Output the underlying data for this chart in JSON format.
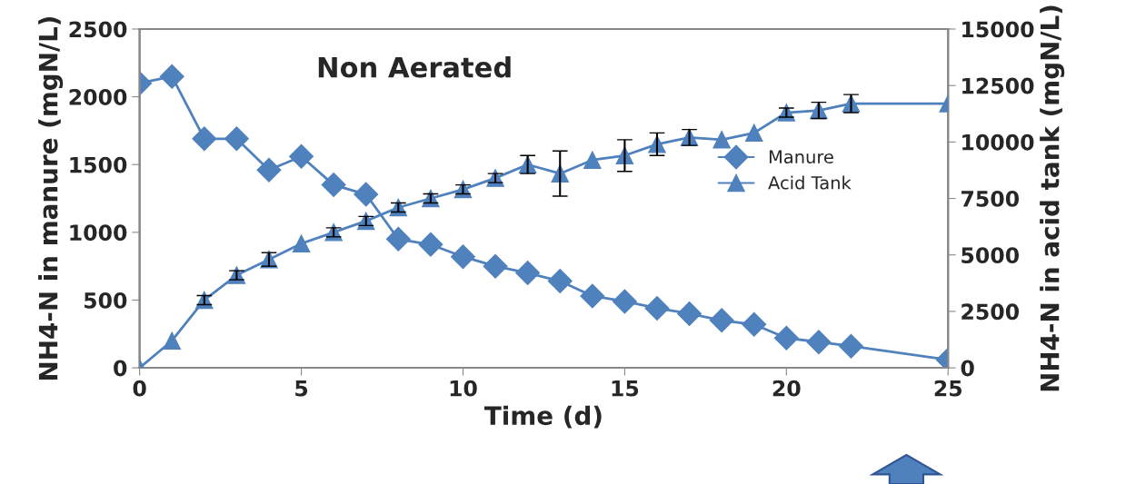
{
  "chart_data": {
    "type": "line",
    "title": "Non Aerated",
    "xlabel": "Time (d)",
    "ylabel": "NH4-N in manure (mgN/L)",
    "y2label": "NH4-N in acid tank (mgN/L)",
    "x": [
      0,
      1,
      2,
      3,
      4,
      5,
      6,
      7,
      8,
      9,
      10,
      11,
      12,
      13,
      14,
      15,
      16,
      17,
      18,
      19,
      20,
      21,
      22,
      25
    ],
    "series": [
      {
        "name": "Manure",
        "color": "#4f81bd",
        "marker": "diamond",
        "values": [
          2100,
          2150,
          1690,
          1690,
          1460,
          1560,
          1350,
          1280,
          950,
          910,
          820,
          750,
          700,
          640,
          530,
          490,
          440,
          400,
          350,
          320,
          220,
          190,
          160,
          60
        ]
      },
      {
        "name": "Acid Tank",
        "color": "#4f81bd",
        "marker": "triangle",
        "axis": "y2",
        "values": [
          0,
          1200,
          3000,
          4100,
          4800,
          5500,
          6000,
          6500,
          7100,
          7500,
          7900,
          8400,
          9000,
          8600,
          9200,
          9400,
          9900,
          10200,
          10100,
          10400,
          11300,
          11400,
          11700,
          11700
        ],
        "errors": [
          null,
          null,
          200,
          200,
          300,
          null,
          200,
          200,
          200,
          200,
          200,
          200,
          400,
          1000,
          null,
          700,
          500,
          350,
          null,
          null,
          200,
          360,
          400,
          null
        ]
      }
    ],
    "xlim": [
      0,
      25
    ],
    "xticks": [
      0,
      5,
      10,
      15,
      20,
      25
    ],
    "ylim": [
      0,
      2500
    ],
    "yticks": [
      0,
      500,
      1000,
      1500,
      2000,
      2500
    ],
    "y2lim": [
      0,
      15000
    ],
    "y2ticks": [
      0,
      2500,
      5000,
      7500,
      10000,
      12500,
      15000
    ],
    "legend": "right",
    "grid": false
  }
}
